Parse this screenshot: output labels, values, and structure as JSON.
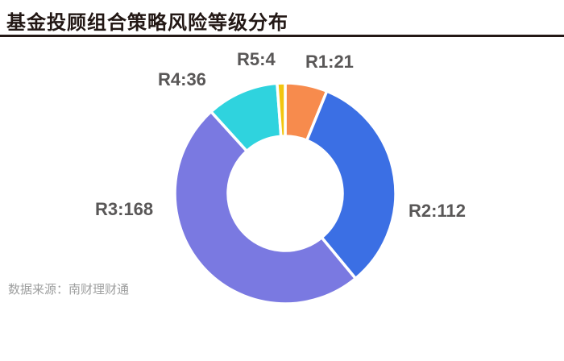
{
  "header": {
    "title": "基金投顾组合策略风险等级分布"
  },
  "footer": {
    "source": "数据来源：南财理财通"
  },
  "colors": {
    "title_text": "#231815",
    "divider": "#231815",
    "label_text": "#595757",
    "source_text": "#9E9F9F",
    "background": "#ffffff",
    "slice_border": "#ffffff"
  },
  "chart_data": {
    "type": "pie",
    "subtype": "donut",
    "title": "基金投顾组合策略风险等级分布",
    "total": 341,
    "start_angle_deg": 0,
    "direction": "clockwise",
    "legend_position": "labels-around-donut",
    "inner_radius_ratio": 0.52,
    "slices": [
      {
        "name": "R1",
        "value": 21,
        "label": "R1:21",
        "color": "#F78B4D"
      },
      {
        "name": "R2",
        "value": 112,
        "label": "R2:112",
        "color": "#3B6FE4"
      },
      {
        "name": "R3",
        "value": 168,
        "label": "R3:168",
        "color": "#7A79E1"
      },
      {
        "name": "R4",
        "value": 36,
        "label": "R4:36",
        "color": "#2FD3DE"
      },
      {
        "name": "R5",
        "value": 4,
        "label": "R5:4",
        "color": "#F2C50F"
      }
    ]
  }
}
